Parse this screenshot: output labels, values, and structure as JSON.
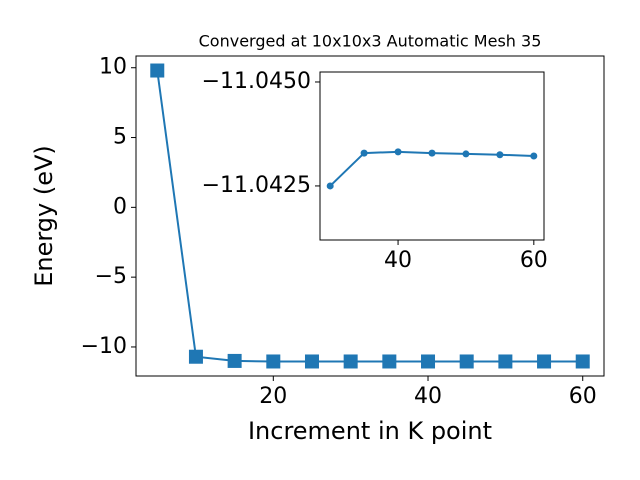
{
  "chart_data": [
    {
      "type": "line",
      "title": "Converged at 10x10x3 Automatic Mesh 35",
      "x_label": "Increment in K point",
      "y_label": "Energy (eV)",
      "x": [
        5,
        10,
        15,
        20,
        25,
        30,
        35,
        40,
        45,
        50,
        55,
        60
      ],
      "series": [
        {
          "name": "Energy",
          "color": "#1f77b4",
          "marker": "square",
          "values": [
            9.8,
            -10.7,
            -11.0,
            -11.04,
            -11.04,
            -11.04,
            -11.04,
            -11.04,
            -11.04,
            -11.04,
            -11.04,
            -11.04
          ]
        }
      ],
      "xlim": [
        2.25,
        62.75
      ],
      "xticks": [
        20,
        40,
        60
      ],
      "ylim": [
        -12.08,
        10.84
      ],
      "yticks": [
        {
          "value": -10,
          "label": "−10"
        },
        {
          "value": -5,
          "label": "−5"
        },
        0,
        5,
        10
      ]
    },
    {
      "type": "line",
      "x": [
        30,
        35,
        40,
        45,
        50,
        55,
        60
      ],
      "series": [
        {
          "name": "Inset",
          "color": "#1f77b4",
          "marker": "circle",
          "values": [
            -11.0425,
            -11.04329,
            -11.04332,
            -11.04329,
            -11.04327,
            -11.04325,
            -11.04322
          ]
        }
      ],
      "xlim": [
        28.5,
        61.5
      ],
      "xticks": [
        40,
        60
      ],
      "ylim": [
        -11.0412,
        -11.04524
      ],
      "yticks": [
        {
          "value": -11.0425,
          "label": "−11.0425"
        },
        {
          "value": -11.045,
          "label": "−11.0450"
        }
      ]
    }
  ]
}
